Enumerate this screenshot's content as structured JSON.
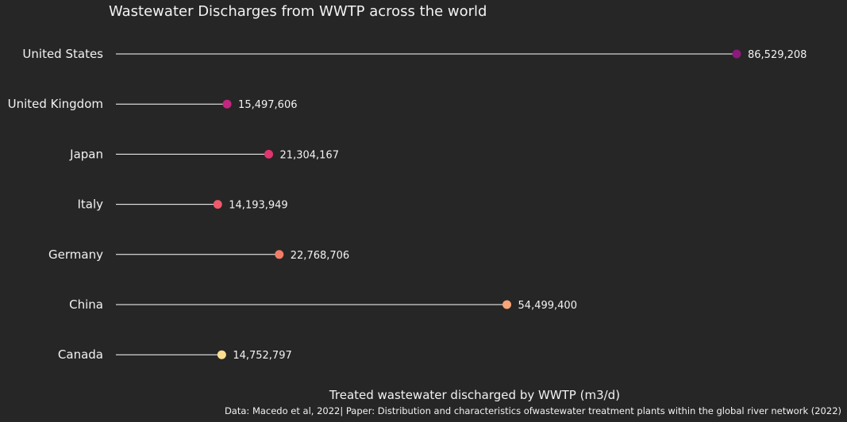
{
  "chart_data": {
    "type": "lollipop",
    "title": "Wastewater Discharges from WWTP across the world",
    "xlabel": "Treated wastewater discharged by WWTP (m3/d)",
    "caption": "Data:  Macedo et al, 2022| Paper: Distribution and characteristics ofwastewater treatment plants within the global river network (2022)",
    "xlim": [
      0,
      86529208
    ],
    "grid": false,
    "categories": [
      "United States",
      "United Kingdom",
      "Japan",
      "Italy",
      "Germany",
      "China",
      "Canada"
    ],
    "values": [
      86529208,
      15497606,
      21304167,
      14193949,
      22768706,
      54499400,
      14752797
    ],
    "value_labels": [
      "86,529,208",
      "15,497,606",
      "21,304,167",
      "14,193,949",
      "22,768,706",
      "54,499,400",
      "14,752,797"
    ],
    "colors": [
      "#8b1a7b",
      "#c2267f",
      "#e0356e",
      "#ee5a6b",
      "#f37c67",
      "#f9a577",
      "#fddd92"
    ]
  }
}
